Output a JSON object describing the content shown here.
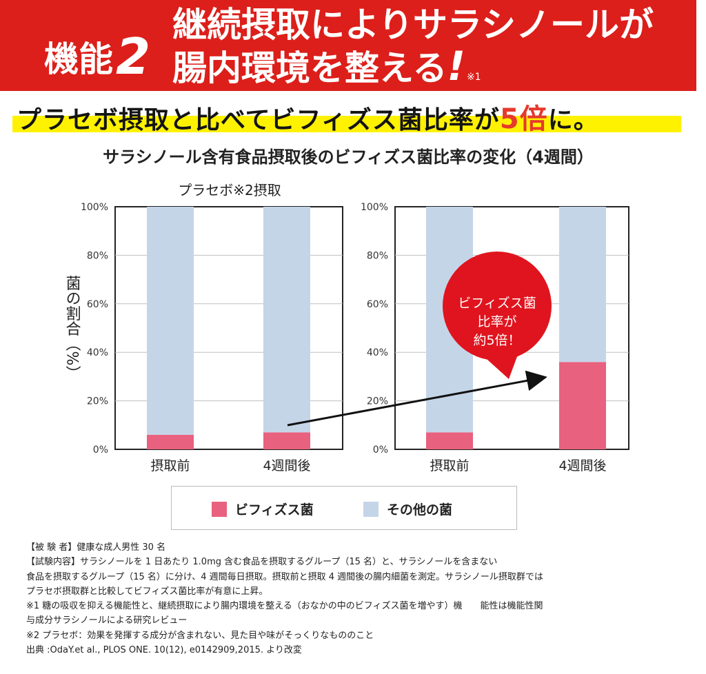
{
  "banner": {
    "label": "機能",
    "number": "2",
    "title_line1": "継続摂取によりサラシノールが",
    "title_line2": "腸内環境を整える",
    "exclaim": "!",
    "note": "※1"
  },
  "headline": {
    "before": "プラセボ摂取と比べてビフィズス菌比率が",
    "accent": "5倍",
    "after": "に。"
  },
  "subhead": "サラシノール含有食品摂取後のビフィズス菌比率の変化（4週間）",
  "callout": {
    "line1": "ビフィズス菌",
    "line2": "比率が",
    "line3": "約5倍！"
  },
  "colors": {
    "banner": "#dc1f1a",
    "highlight": "#fff200",
    "accent": "#e53a2c",
    "bifido": "#e8617e",
    "other": "#c5d5e8",
    "callout": "#e0141e"
  },
  "chart_data": [
    {
      "type": "bar",
      "stacked": true,
      "title": "プラセボ※2摂取",
      "ylabel": "菌の割合（%）",
      "ylim": [
        0,
        100
      ],
      "yticks": [
        "0%",
        "20%",
        "40%",
        "60%",
        "80%",
        "100%"
      ],
      "categories": [
        "摂取前",
        "4週間後"
      ],
      "series": [
        {
          "name": "ビフィズス菌",
          "color": "#e8617e",
          "values": [
            6,
            7
          ]
        },
        {
          "name": "その他の菌",
          "color": "#c5d5e8",
          "values": [
            94,
            93
          ]
        }
      ]
    },
    {
      "type": "bar",
      "stacked": true,
      "title": "",
      "ylim": [
        0,
        100
      ],
      "yticks": [
        "0%",
        "20%",
        "40%",
        "60%",
        "80%",
        "100%"
      ],
      "categories": [
        "摂取前",
        "4週間後"
      ],
      "series": [
        {
          "name": "ビフィズス菌",
          "color": "#e8617e",
          "values": [
            7,
            36
          ]
        },
        {
          "name": "その他の菌",
          "color": "#c5d5e8",
          "values": [
            93,
            64
          ]
        }
      ]
    }
  ],
  "legend": [
    {
      "label": "ビフィズス菌",
      "color": "#e8617e"
    },
    {
      "label": "その他の菌",
      "color": "#c5d5e8"
    }
  ],
  "footnotes": [
    "【被 験 者】健康な成人男性 30 名",
    "【試験内容】サラシノールを 1 日あたり 1.0mg 含む食品を摂取するグループ（15 名）と、サラシノールを含まない",
    "食品を摂取するグループ（15 名）に分け、4 週間毎日摂取。摂取前と摂取 4 週間後の腸内細菌を測定。サラシノール摂取群では",
    "プラセボ摂取群と比較してビフィズス菌比率が有意に上昇。",
    "※1 糖の吸収を抑える機能性と、継続摂取により腸内環境を整える（おなかの中のビフィズス菌を増やす）機　　能性は機能性関",
    "与成分サラシノールによる研究レビュー",
    "※2 プラセボ：効果を発揮する成分が含まれない、見た目や味がそっくりなもののこと",
    "出典 :OdaY.et al., PLOS ONE. 10(12), e0142909,2015. より改変"
  ]
}
